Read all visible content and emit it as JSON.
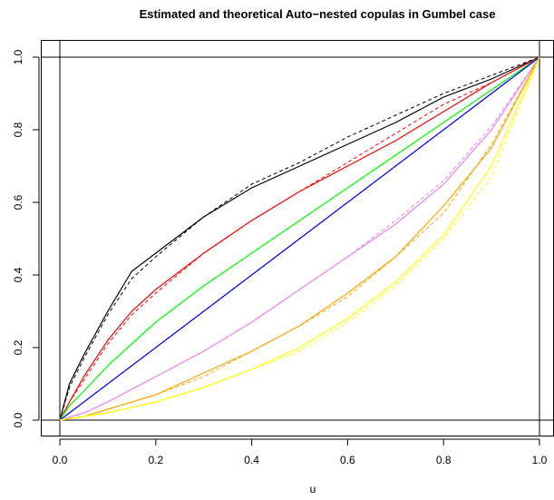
{
  "chart_data": {
    "type": "line",
    "title": "Estimated and theoretical Auto−nested copulas in Gumbel case",
    "xlabel": "u",
    "ylabel": "",
    "xlim": [
      0,
      1
    ],
    "ylim": [
      0,
      1
    ],
    "x_ticks": [
      "0.0",
      "0.2",
      "0.4",
      "0.6",
      "0.8",
      "1.0"
    ],
    "y_ticks": [
      "0.0",
      "0.2",
      "0.4",
      "0.6",
      "0.8",
      "1.0"
    ],
    "x_tick_values": [
      0,
      0.2,
      0.4,
      0.6,
      0.8,
      1.0
    ],
    "y_tick_values": [
      0,
      0.2,
      0.4,
      0.6,
      0.8,
      1.0
    ],
    "reference_lines": {
      "horizontal": [
        0,
        1
      ],
      "vertical": [
        0,
        1
      ]
    },
    "grid": false,
    "legend": "none",
    "series": [
      {
        "color": "#000000",
        "x": [
          0,
          0.02,
          0.05,
          0.1,
          0.15,
          0.2,
          0.3,
          0.4,
          0.5,
          0.6,
          0.7,
          0.8,
          0.9,
          1.0
        ],
        "estimated": [
          0,
          0.1,
          0.18,
          0.3,
          0.41,
          0.46,
          0.56,
          0.64,
          0.7,
          0.76,
          0.82,
          0.89,
          0.94,
          1.0
        ],
        "theoretical": [
          0,
          0.09,
          0.17,
          0.29,
          0.39,
          0.45,
          0.56,
          0.65,
          0.71,
          0.78,
          0.84,
          0.9,
          0.95,
          1.0
        ]
      },
      {
        "color": "#ff0000",
        "x": [
          0,
          0.02,
          0.05,
          0.1,
          0.15,
          0.2,
          0.3,
          0.4,
          0.5,
          0.6,
          0.7,
          0.8,
          0.9,
          1.0
        ],
        "estimated": [
          0,
          0.05,
          0.12,
          0.22,
          0.3,
          0.36,
          0.46,
          0.55,
          0.63,
          0.7,
          0.77,
          0.85,
          0.93,
          1.0
        ],
        "theoretical": [
          0,
          0.05,
          0.11,
          0.21,
          0.29,
          0.35,
          0.46,
          0.55,
          0.63,
          0.71,
          0.79,
          0.87,
          0.93,
          1.0
        ]
      },
      {
        "color": "#00ff00",
        "x": [
          0,
          0.02,
          0.05,
          0.1,
          0.15,
          0.2,
          0.3,
          0.4,
          0.5,
          0.6,
          0.7,
          0.8,
          0.9,
          1.0
        ],
        "estimated": [
          0,
          0.04,
          0.08,
          0.15,
          0.21,
          0.27,
          0.37,
          0.46,
          0.55,
          0.64,
          0.73,
          0.82,
          0.91,
          1.0
        ],
        "theoretical": [
          0,
          0.04,
          0.08,
          0.15,
          0.21,
          0.27,
          0.37,
          0.46,
          0.55,
          0.64,
          0.73,
          0.82,
          0.91,
          1.0
        ]
      },
      {
        "color": "#0000ff",
        "x": [
          0,
          1.0
        ],
        "estimated": [
          0,
          1.0
        ],
        "theoretical": [
          0,
          1.0
        ]
      },
      {
        "color": "#ee82ee",
        "x": [
          0,
          0.05,
          0.1,
          0.2,
          0.3,
          0.4,
          0.5,
          0.6,
          0.7,
          0.8,
          0.9,
          1.0
        ],
        "estimated": [
          0,
          0.02,
          0.05,
          0.12,
          0.19,
          0.27,
          0.36,
          0.45,
          0.54,
          0.65,
          0.8,
          1.0
        ],
        "theoretical": [
          0,
          0.02,
          0.05,
          0.12,
          0.19,
          0.27,
          0.36,
          0.45,
          0.55,
          0.66,
          0.81,
          1.0
        ]
      },
      {
        "color": "#ffa500",
        "x": [
          0,
          0.05,
          0.1,
          0.2,
          0.3,
          0.4,
          0.5,
          0.6,
          0.7,
          0.8,
          0.9,
          1.0
        ],
        "estimated": [
          0,
          0.01,
          0.03,
          0.07,
          0.13,
          0.19,
          0.26,
          0.35,
          0.45,
          0.59,
          0.75,
          1.0
        ],
        "theoretical": [
          0,
          0.01,
          0.03,
          0.07,
          0.12,
          0.19,
          0.26,
          0.34,
          0.45,
          0.57,
          0.76,
          1.0
        ]
      },
      {
        "color": "#ffff00",
        "x": [
          0,
          0.05,
          0.1,
          0.2,
          0.3,
          0.4,
          0.5,
          0.6,
          0.7,
          0.8,
          0.9,
          1.0
        ],
        "estimated": [
          0,
          0.01,
          0.02,
          0.05,
          0.09,
          0.14,
          0.2,
          0.28,
          0.38,
          0.51,
          0.7,
          1.0
        ],
        "theoretical": [
          0,
          0.01,
          0.02,
          0.05,
          0.09,
          0.14,
          0.19,
          0.27,
          0.37,
          0.5,
          0.67,
          1.0
        ]
      }
    ]
  }
}
